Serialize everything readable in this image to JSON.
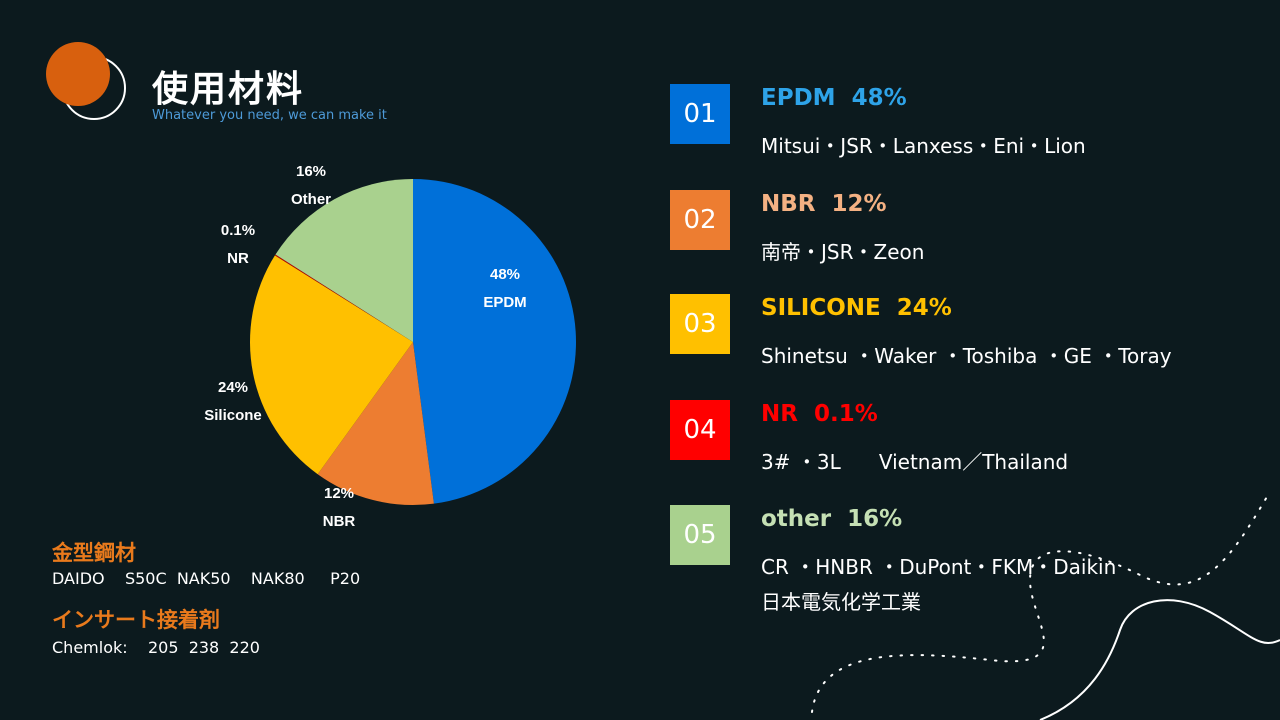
{
  "header": {
    "title": "使用材料",
    "subtitle": "Whatever you need, we can make it"
  },
  "chart_data": {
    "type": "pie",
    "slices": [
      {
        "label": "EPDM",
        "value": 48,
        "display": "48%",
        "color": "#0070d9"
      },
      {
        "label": "NBR",
        "value": 12,
        "display": "12%",
        "color": "#ed7d31"
      },
      {
        "label": "Silicone",
        "value": 24,
        "display": "24%",
        "color": "#ffc000"
      },
      {
        "label": "NR",
        "value": 0.1,
        "display": "0.1%",
        "color": "#c00000"
      },
      {
        "label": "Other",
        "value": 16,
        "display": "16%",
        "color": "#a9d18e"
      }
    ]
  },
  "materials": [
    {
      "num": "01",
      "name": "EPDM",
      "percent": "48%",
      "suppliers": "Mitsui・JSR・Lanxess・Eni・Lion",
      "extra": "",
      "color": "#0070d9",
      "head_color": "#2ea3e8"
    },
    {
      "num": "02",
      "name": "NBR",
      "percent": "12%",
      "suppliers": "南帝・JSR・Zeon",
      "extra": "",
      "color": "#ed7d31",
      "head_color": "#f4b183"
    },
    {
      "num": "03",
      "name": "SILICONE",
      "percent": "24%",
      "suppliers": "Shinetsu ・Waker ・Toshiba ・GE ・Toray",
      "extra": "",
      "color": "#ffc000",
      "head_color": "#ffc000"
    },
    {
      "num": "04",
      "name": "NR",
      "percent": "0.1%",
      "suppliers": "3# ・3L      Vietnam／Thailand",
      "extra": "",
      "color": "#ff0000",
      "head_color": "#ff0000"
    },
    {
      "num": "05",
      "name": "other",
      "percent": "16%",
      "suppliers": "CR ・HNBR ・DuPont・FKM・Daikin",
      "extra": "日本電気化学工業",
      "color": "#a9d18e",
      "head_color": "#c5e0b4"
    }
  ],
  "mold_steel": {
    "heading": "金型鋼材",
    "text": "DAIDO    S50C  NAK50    NAK80     P20"
  },
  "adhesive": {
    "heading": "インサート接着剤",
    "text": "Chemlok:    205  238  220"
  }
}
